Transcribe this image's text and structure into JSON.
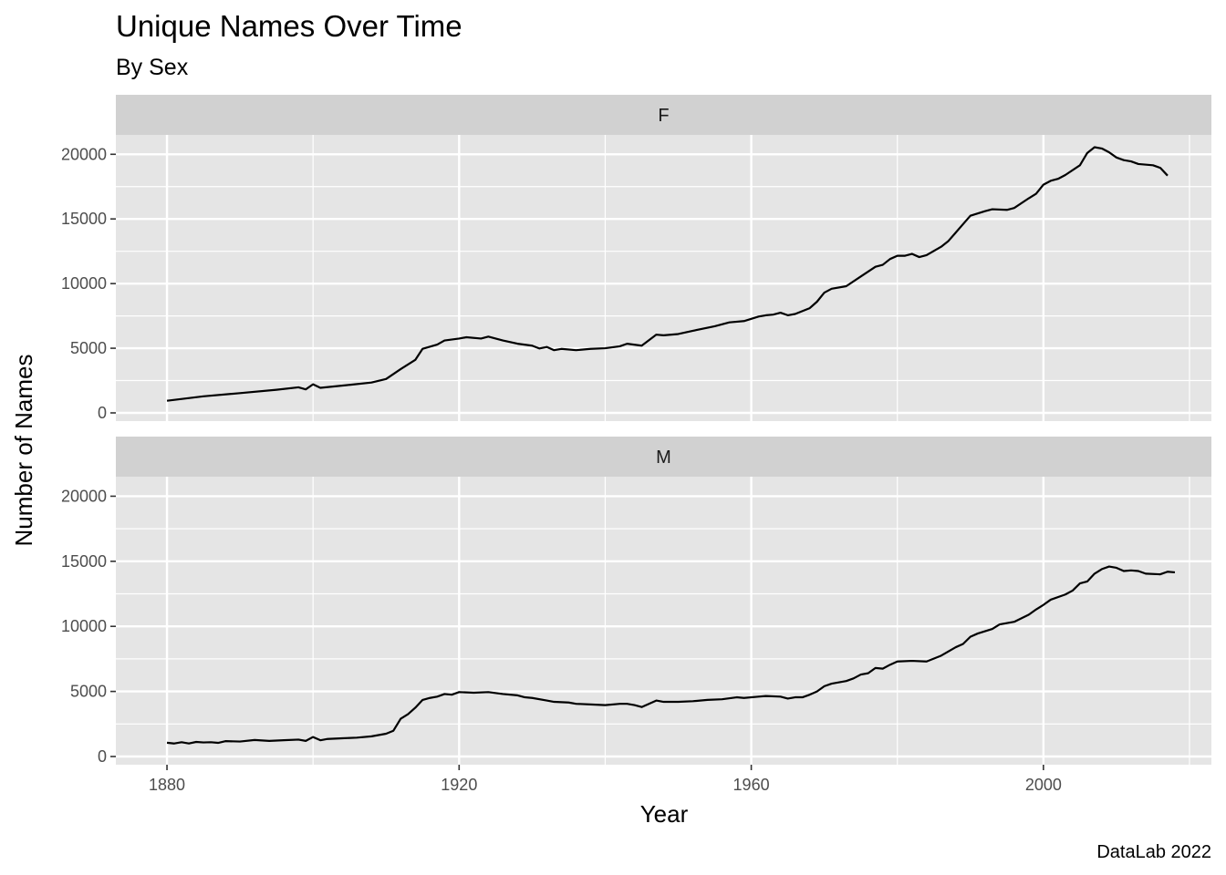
{
  "chart_data": {
    "type": "line",
    "title": "Unique Names Over Time",
    "subtitle": "By Sex",
    "xlabel": "Year",
    "ylabel": "Number of Names",
    "caption": "DataLab 2022",
    "xlim": [
      1873,
      2023
    ],
    "ylim": [
      0,
      21500
    ],
    "x_ticks": [
      1880,
      1920,
      1960,
      2000
    ],
    "y_ticks": [
      0,
      5000,
      10000,
      15000,
      20000
    ],
    "grid": true,
    "line_color": "#000000",
    "panel_background": "#e5e5e5",
    "strip_background": "#d1d1d1",
    "grid_color": "#ffffff",
    "facets": [
      {
        "label": "F",
        "points": [
          [
            1880,
            940
          ],
          [
            1885,
            1280
          ],
          [
            1890,
            1530
          ],
          [
            1895,
            1790
          ],
          [
            1898,
            1980
          ],
          [
            1899,
            1820
          ],
          [
            1900,
            2210
          ],
          [
            1901,
            1940
          ],
          [
            1905,
            2170
          ],
          [
            1908,
            2350
          ],
          [
            1910,
            2620
          ],
          [
            1912,
            3390
          ],
          [
            1914,
            4100
          ],
          [
            1915,
            4960
          ],
          [
            1917,
            5280
          ],
          [
            1918,
            5600
          ],
          [
            1920,
            5750
          ],
          [
            1921,
            5850
          ],
          [
            1923,
            5750
          ],
          [
            1924,
            5900
          ],
          [
            1926,
            5600
          ],
          [
            1928,
            5350
          ],
          [
            1930,
            5200
          ],
          [
            1931,
            4980
          ],
          [
            1932,
            5100
          ],
          [
            1933,
            4850
          ],
          [
            1934,
            4950
          ],
          [
            1936,
            4850
          ],
          [
            1938,
            4950
          ],
          [
            1940,
            5000
          ],
          [
            1942,
            5150
          ],
          [
            1943,
            5350
          ],
          [
            1945,
            5200
          ],
          [
            1947,
            6050
          ],
          [
            1948,
            6000
          ],
          [
            1950,
            6100
          ],
          [
            1952,
            6350
          ],
          [
            1955,
            6700
          ],
          [
            1957,
            7000
          ],
          [
            1959,
            7100
          ],
          [
            1961,
            7450
          ],
          [
            1962,
            7550
          ],
          [
            1963,
            7600
          ],
          [
            1964,
            7750
          ],
          [
            1965,
            7550
          ],
          [
            1966,
            7650
          ],
          [
            1968,
            8100
          ],
          [
            1969,
            8600
          ],
          [
            1970,
            9300
          ],
          [
            1971,
            9600
          ],
          [
            1973,
            9800
          ],
          [
            1975,
            10550
          ],
          [
            1977,
            11300
          ],
          [
            1978,
            11450
          ],
          [
            1979,
            11900
          ],
          [
            1980,
            12150
          ],
          [
            1981,
            12150
          ],
          [
            1982,
            12300
          ],
          [
            1983,
            12050
          ],
          [
            1984,
            12200
          ],
          [
            1986,
            12850
          ],
          [
            1987,
            13300
          ],
          [
            1988,
            13950
          ],
          [
            1990,
            15250
          ],
          [
            1992,
            15600
          ],
          [
            1993,
            15750
          ],
          [
            1995,
            15700
          ],
          [
            1996,
            15850
          ],
          [
            1998,
            16600
          ],
          [
            1999,
            16950
          ],
          [
            2000,
            17650
          ],
          [
            2001,
            17950
          ],
          [
            2002,
            18100
          ],
          [
            2003,
            18400
          ],
          [
            2005,
            19150
          ],
          [
            2006,
            20100
          ],
          [
            2007,
            20550
          ],
          [
            2008,
            20450
          ],
          [
            2009,
            20150
          ],
          [
            2010,
            19750
          ],
          [
            2011,
            19550
          ],
          [
            2012,
            19450
          ],
          [
            2013,
            19250
          ],
          [
            2015,
            19150
          ],
          [
            2016,
            18950
          ],
          [
            2017,
            18350
          ]
        ]
      },
      {
        "label": "M",
        "points": [
          [
            1880,
            1060
          ],
          [
            1881,
            1000
          ],
          [
            1882,
            1100
          ],
          [
            1883,
            1000
          ],
          [
            1884,
            1120
          ],
          [
            1885,
            1080
          ],
          [
            1886,
            1100
          ],
          [
            1887,
            1050
          ],
          [
            1888,
            1180
          ],
          [
            1890,
            1150
          ],
          [
            1892,
            1270
          ],
          [
            1894,
            1200
          ],
          [
            1896,
            1250
          ],
          [
            1898,
            1300
          ],
          [
            1899,
            1200
          ],
          [
            1900,
            1500
          ],
          [
            1901,
            1250
          ],
          [
            1902,
            1350
          ],
          [
            1904,
            1400
          ],
          [
            1906,
            1450
          ],
          [
            1908,
            1550
          ],
          [
            1910,
            1750
          ],
          [
            1911,
            1980
          ],
          [
            1912,
            2900
          ],
          [
            1913,
            3250
          ],
          [
            1914,
            3750
          ],
          [
            1915,
            4350
          ],
          [
            1916,
            4500
          ],
          [
            1917,
            4600
          ],
          [
            1918,
            4800
          ],
          [
            1919,
            4750
          ],
          [
            1920,
            4950
          ],
          [
            1922,
            4900
          ],
          [
            1924,
            4950
          ],
          [
            1926,
            4800
          ],
          [
            1928,
            4700
          ],
          [
            1929,
            4550
          ],
          [
            1930,
            4500
          ],
          [
            1932,
            4300
          ],
          [
            1933,
            4200
          ],
          [
            1935,
            4150
          ],
          [
            1936,
            4050
          ],
          [
            1938,
            4000
          ],
          [
            1940,
            3950
          ],
          [
            1942,
            4050
          ],
          [
            1943,
            4050
          ],
          [
            1944,
            3950
          ],
          [
            1945,
            3800
          ],
          [
            1947,
            4300
          ],
          [
            1948,
            4200
          ],
          [
            1950,
            4200
          ],
          [
            1952,
            4250
          ],
          [
            1954,
            4350
          ],
          [
            1956,
            4400
          ],
          [
            1958,
            4550
          ],
          [
            1959,
            4500
          ],
          [
            1961,
            4600
          ],
          [
            1962,
            4650
          ],
          [
            1964,
            4600
          ],
          [
            1965,
            4450
          ],
          [
            1966,
            4550
          ],
          [
            1967,
            4550
          ],
          [
            1968,
            4750
          ],
          [
            1969,
            5000
          ],
          [
            1970,
            5400
          ],
          [
            1971,
            5600
          ],
          [
            1973,
            5800
          ],
          [
            1974,
            6000
          ],
          [
            1975,
            6300
          ],
          [
            1976,
            6400
          ],
          [
            1977,
            6800
          ],
          [
            1978,
            6750
          ],
          [
            1979,
            7050
          ],
          [
            1980,
            7300
          ],
          [
            1982,
            7350
          ],
          [
            1984,
            7300
          ],
          [
            1986,
            7750
          ],
          [
            1988,
            8400
          ],
          [
            1989,
            8650
          ],
          [
            1990,
            9200
          ],
          [
            1991,
            9450
          ],
          [
            1993,
            9800
          ],
          [
            1994,
            10150
          ],
          [
            1996,
            10350
          ],
          [
            1998,
            10900
          ],
          [
            1999,
            11300
          ],
          [
            2000,
            11650
          ],
          [
            2001,
            12050
          ],
          [
            2003,
            12450
          ],
          [
            2004,
            12750
          ],
          [
            2005,
            13300
          ],
          [
            2006,
            13450
          ],
          [
            2007,
            14050
          ],
          [
            2008,
            14400
          ],
          [
            2009,
            14600
          ],
          [
            2010,
            14500
          ],
          [
            2011,
            14250
          ],
          [
            2012,
            14300
          ],
          [
            2013,
            14250
          ],
          [
            2014,
            14050
          ],
          [
            2016,
            14000
          ],
          [
            2017,
            14200
          ],
          [
            2018,
            14150
          ]
        ]
      }
    ]
  }
}
